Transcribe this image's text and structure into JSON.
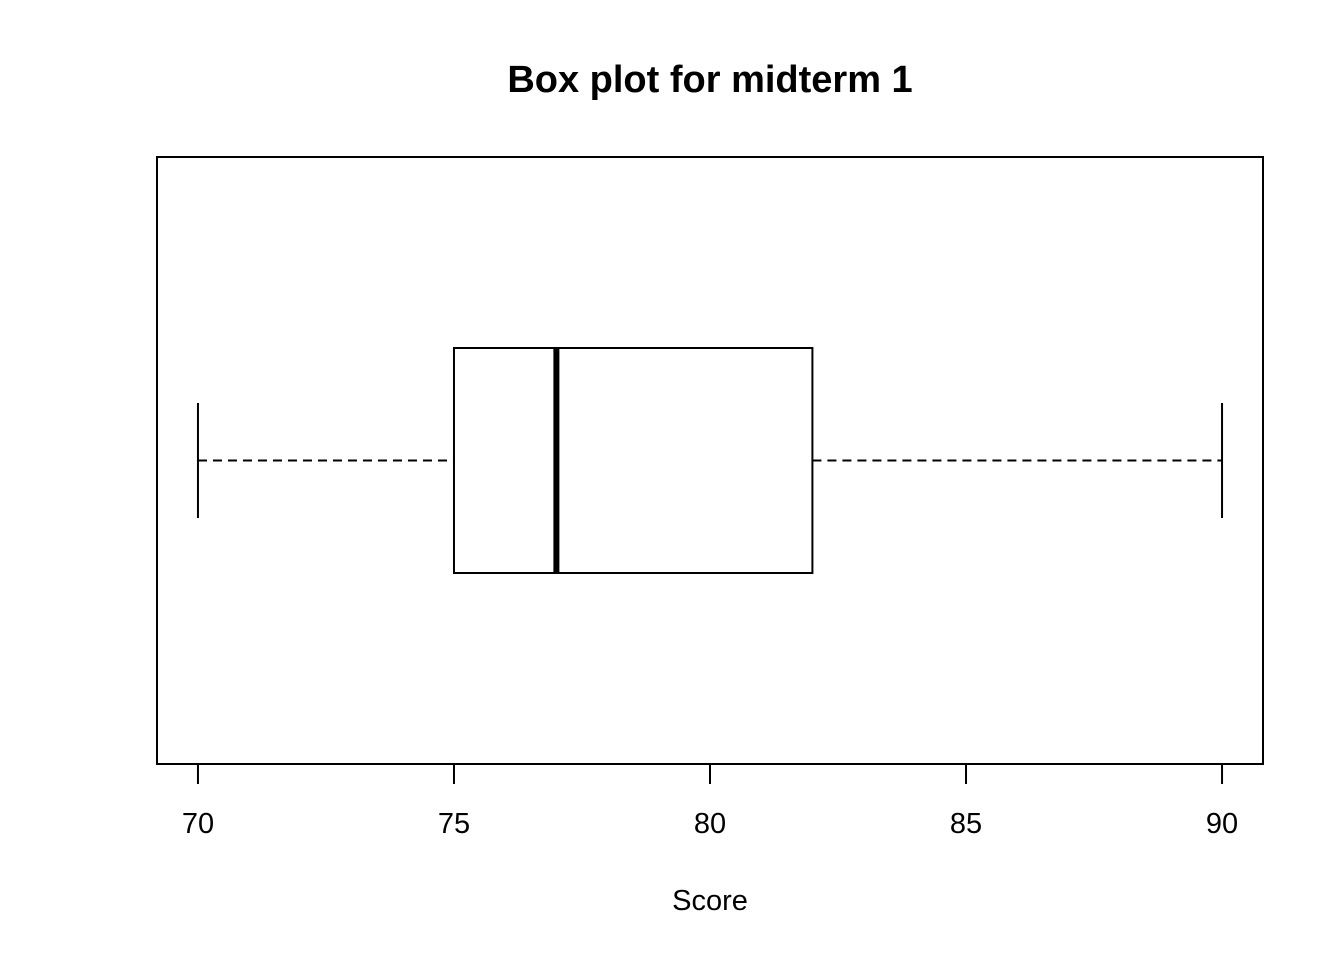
{
  "chart_data": {
    "type": "box",
    "orientation": "horizontal",
    "title": "Box plot for midterm 1",
    "xlabel": "Score",
    "ylabel": "",
    "xlim": [
      69.2,
      90.8
    ],
    "ticks": [
      70,
      75,
      80,
      85,
      90
    ],
    "tick_labels": [
      "70",
      "75",
      "80",
      "85",
      "90"
    ],
    "box": {
      "min": 70,
      "q1": 75,
      "median": 77,
      "q3": 82,
      "max": 90
    },
    "grid": false,
    "legend": "none"
  }
}
